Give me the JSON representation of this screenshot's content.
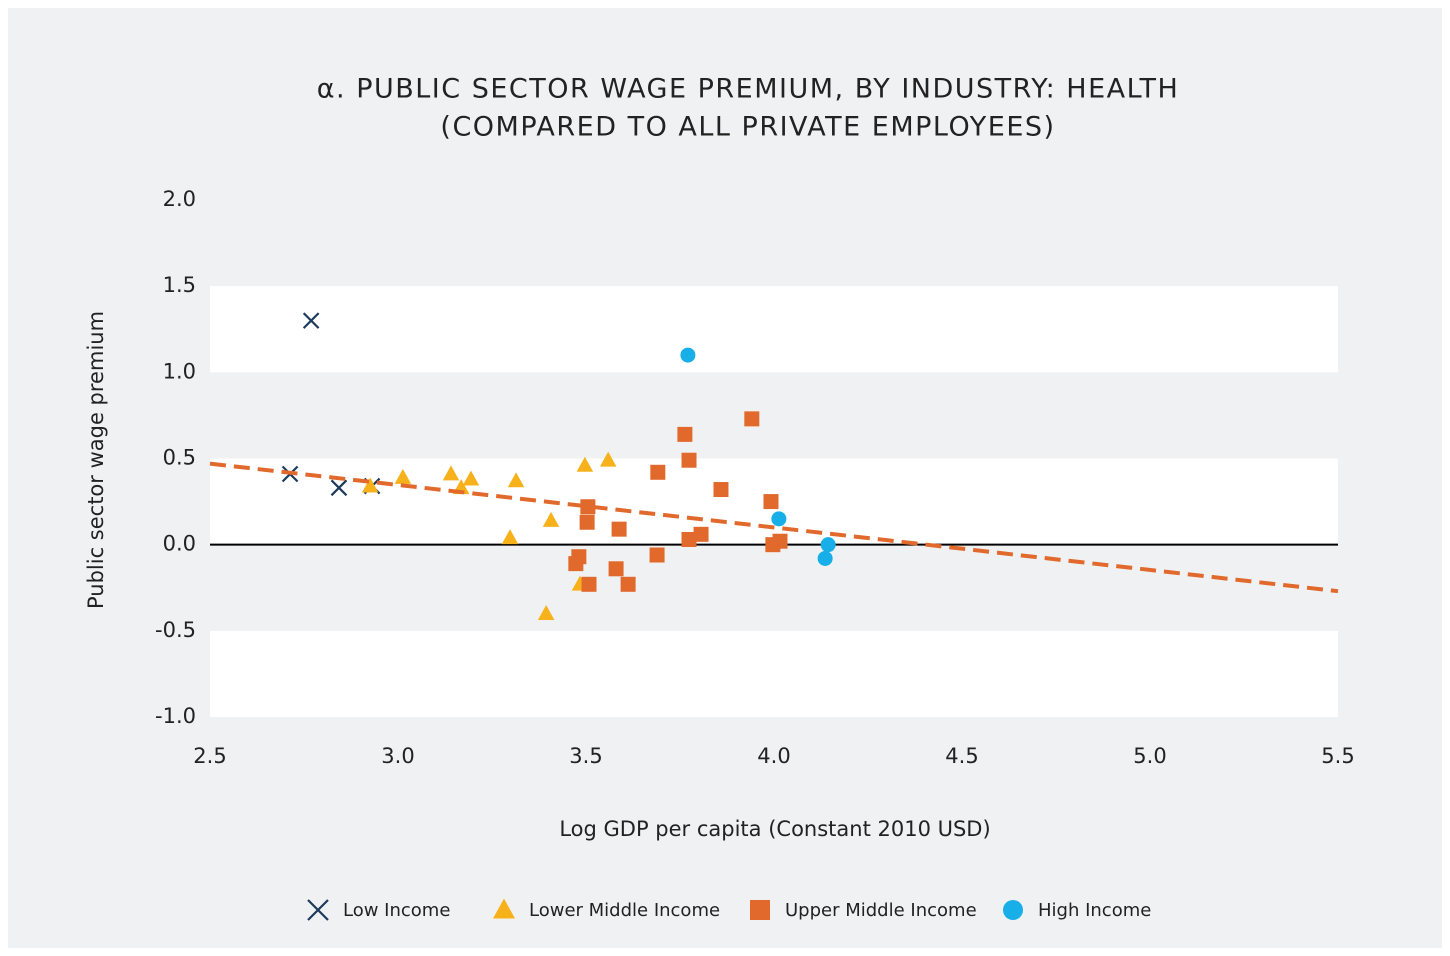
{
  "chart_data": {
    "type": "scatter",
    "title": "α. PUBLIC SECTOR WAGE PREMIUM, BY INDUSTRY: HEALTH",
    "subtitle": "(COMPARED TO ALL PRIVATE EMPLOYEES)",
    "x_label": "Log GDP per capita (Constant 2010 USD)",
    "y_label": "Public sector wage premium",
    "xlim": [
      2.5,
      5.5
    ],
    "xticks": [
      2.5,
      {
        "value": 3,
        "label": "3.0"
      },
      3.5,
      {
        "value": 4,
        "label": "4.0"
      },
      4.5,
      {
        "value": 5,
        "label": "5.0"
      },
      5.5
    ],
    "ylim": [
      -1,
      2
    ],
    "yticks": [
      {
        "value": -1,
        "label": "-1.0"
      },
      -0.5,
      {
        "value": 0,
        "label": "0.0"
      },
      0.5,
      {
        "value": 1,
        "label": "1.0"
      },
      1.5,
      {
        "value": 2,
        "label": "2.0"
      }
    ],
    "banded_background": true,
    "legend": "bottom",
    "series": [
      {
        "name": "Low Income",
        "color": "#1b3a5c",
        "marker": "x",
        "x": [
          2.769,
          2.713,
          2.843,
          2.931
        ],
        "values": [
          1.3,
          0.41,
          0.33,
          0.34
        ]
      },
      {
        "name": "Lower Middle Income",
        "color": "#f7b21b",
        "marker": "triangle",
        "x": [
          2.926,
          3.013,
          3.141,
          3.168,
          3.194,
          3.314,
          3.298,
          3.407,
          3.394,
          3.497,
          3.559,
          3.484
        ],
        "values": [
          0.34,
          0.39,
          0.41,
          0.33,
          0.38,
          0.37,
          0.04,
          0.14,
          -0.4,
          0.46,
          0.49,
          -0.23
        ]
      },
      {
        "name": "Upper Middle Income",
        "color": "#e2692c",
        "marker": "square",
        "x": [
          3.763,
          3.941,
          3.691,
          3.774,
          3.859,
          3.992,
          3.505,
          3.503,
          3.588,
          3.689,
          3.774,
          3.806,
          3.481,
          3.473,
          3.508,
          3.58,
          3.612,
          3.997,
          4.016
        ],
        "values": [
          0.64,
          0.73,
          0.42,
          0.49,
          0.32,
          0.25,
          0.22,
          0.13,
          0.09,
          -0.06,
          0.03,
          0.06,
          -0.07,
          -0.11,
          -0.23,
          -0.14,
          -0.23,
          0.0,
          0.02
        ]
      },
      {
        "name": "High Income",
        "color": "#18aee8",
        "marker": "circle",
        "x": [
          3.771,
          4.013,
          4.144,
          4.136
        ],
        "values": [
          1.1,
          0.15,
          0.0,
          -0.08
        ]
      }
    ],
    "trendline": {
      "color": "#e2692c",
      "x": [
        2.5,
        5.5
      ],
      "values": [
        0.47,
        -0.27
      ]
    }
  }
}
